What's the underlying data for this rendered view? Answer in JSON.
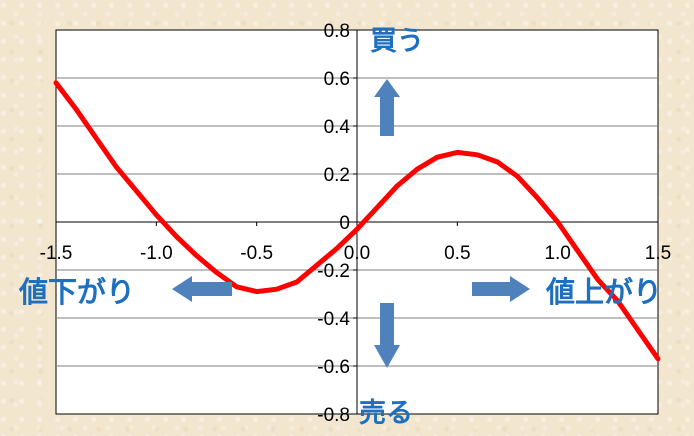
{
  "chart_data": {
    "type": "line",
    "title": "",
    "xlabel": "",
    "ylabel": "",
    "xlim": [
      -1.5,
      1.5
    ],
    "ylim": [
      -0.8,
      0.8
    ],
    "x_ticks": [
      "-1.5",
      "-1.0",
      "-0.5",
      "0.0",
      "0.5",
      "1.0",
      "1.5"
    ],
    "y_ticks": [
      "0.8",
      "0.6",
      "0.4",
      "0.2",
      "0",
      "-0.2",
      "-0.4",
      "-0.6",
      "-0.8"
    ],
    "grid": "horizontal",
    "legend": "none",
    "series": [
      {
        "color": "#ff0000",
        "x": [
          -1.5,
          -1.4,
          -1.3,
          -1.2,
          -1.1,
          -1.0,
          -0.9,
          -0.8,
          -0.7,
          -0.6,
          -0.5,
          -0.4,
          -0.3,
          -0.2,
          -0.1,
          0.0,
          0.1,
          0.2,
          0.3,
          0.4,
          0.5,
          0.6,
          0.7,
          0.8,
          0.9,
          1.0,
          1.1,
          1.2,
          1.3,
          1.4,
          1.5
        ],
        "y": [
          0.58,
          0.47,
          0.35,
          0.23,
          0.13,
          0.03,
          -0.06,
          -0.14,
          -0.21,
          -0.27,
          -0.29,
          -0.28,
          -0.25,
          -0.18,
          -0.11,
          -0.03,
          0.06,
          0.15,
          0.22,
          0.27,
          0.29,
          0.28,
          0.25,
          0.19,
          0.1,
          0.0,
          -0.12,
          -0.24,
          -0.33,
          -0.45,
          -0.57
        ]
      }
    ],
    "annotations": {
      "buy": "買う",
      "sell": "売る",
      "price_down": "値下がり",
      "price_up": "値上がり"
    }
  },
  "colors": {
    "line": "#ff0000",
    "arrow": "#4f81bd",
    "annotation_text": "#1f6fbf",
    "axis": "#000000",
    "grid": "#808080"
  },
  "icons": {
    "up": "arrow-up-icon",
    "down": "arrow-down-icon",
    "left": "arrow-left-icon",
    "right": "arrow-right-icon"
  }
}
